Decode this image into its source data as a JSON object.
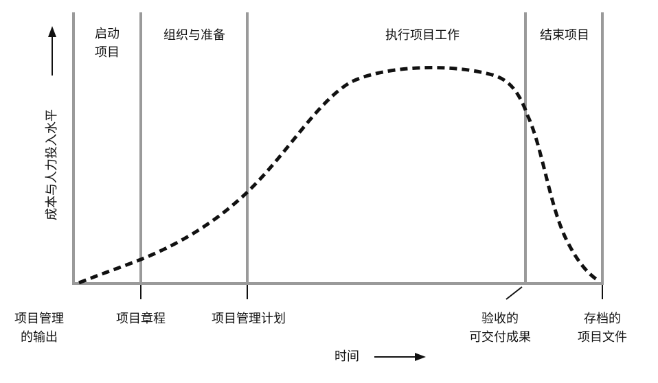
{
  "diagram": {
    "y_axis_label": "成本与人力投入水平",
    "x_axis_label": "时间",
    "phases": [
      {
        "label": [
          "启动",
          "项目"
        ]
      },
      {
        "label": [
          "组织与准备"
        ]
      },
      {
        "label": [
          "执行项目工作"
        ]
      },
      {
        "label": [
          "结束项目"
        ]
      }
    ],
    "outputs_label": [
      "项目管理",
      "的输出"
    ],
    "milestones": [
      {
        "label": [
          "项目章程"
        ]
      },
      {
        "label": [
          "项目管理计划"
        ]
      },
      {
        "label": [
          "验收的",
          "可交付成果"
        ]
      },
      {
        "label": [
          "存档的",
          "项目文件"
        ]
      }
    ]
  }
}
